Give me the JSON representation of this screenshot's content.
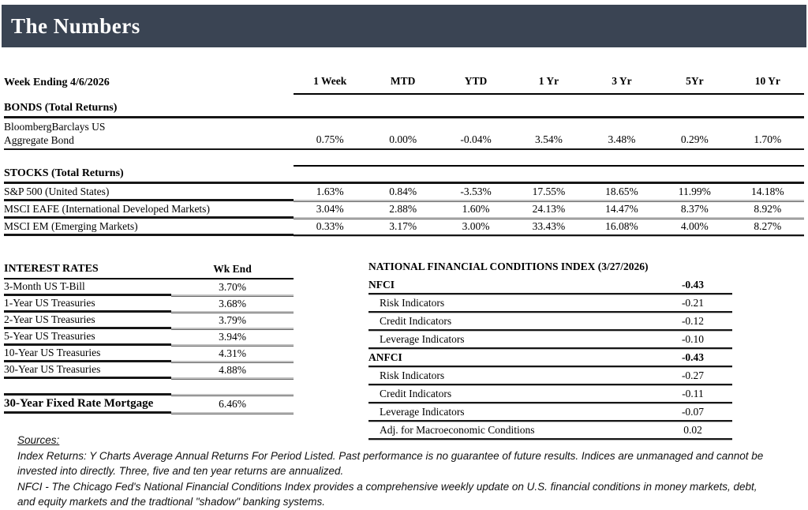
{
  "title": "The Numbers",
  "colors": {
    "header_bg": "#3a4453",
    "header_text": "#ffffff"
  },
  "returns_table": {
    "week_label": "Week Ending 4/6/2026",
    "columns": [
      "1 Week",
      "MTD",
      "YTD",
      "1 Yr",
      "3 Yr",
      "5Yr",
      "10 Yr"
    ],
    "sections": [
      {
        "heading": "BONDS (Total Returns)",
        "rows": [
          {
            "label_line1": "BloombergBarclays US",
            "label_line2": "Aggregate Bond",
            "values": [
              "0.75%",
              "0.00%",
              "-0.04%",
              "3.54%",
              "3.48%",
              "0.29%",
              "1.70%"
            ]
          }
        ]
      },
      {
        "heading": "STOCKS (Total Returns)",
        "rows": [
          {
            "label": "S&P 500 (United States)",
            "values": [
              "1.63%",
              "0.84%",
              "-3.53%",
              "17.55%",
              "18.65%",
              "11.99%",
              "14.18%"
            ]
          },
          {
            "label": "MSCI EAFE (International Developed Markets)",
            "values": [
              "3.04%",
              "2.88%",
              "1.60%",
              "24.13%",
              "14.47%",
              "8.37%",
              "8.92%"
            ]
          },
          {
            "label": "MSCI EM (Emerging Markets)",
            "values": [
              "0.33%",
              "3.17%",
              "3.00%",
              "33.43%",
              "16.08%",
              "4.00%",
              "8.27%"
            ]
          }
        ]
      }
    ]
  },
  "interest_rates": {
    "heading": "INTEREST RATES",
    "value_header": "Wk End",
    "rows": [
      {
        "label": "3-Month US T-Bill",
        "value": "3.70%"
      },
      {
        "label": "1-Year US Treasuries",
        "value": "3.68%"
      },
      {
        "label": "2-Year US Treasuries",
        "value": "3.79%"
      },
      {
        "label": "5-Year US Treasuries",
        "value": "3.94%"
      },
      {
        "label": "10-Year US Treasuries",
        "value": "4.31%"
      },
      {
        "label": "30-Year US Treasuries",
        "value": "4.88%"
      }
    ],
    "mortgage_row": {
      "label": "30-Year Fixed Rate Mortgage",
      "value": "6.46%"
    }
  },
  "nfci": {
    "heading": "NATIONAL FINANCIAL CONDITIONS INDEX (3/27/2026)",
    "rows": [
      {
        "label": "NFCI",
        "value": "-0.43"
      },
      {
        "label": "Risk Indicators",
        "value": "-0.21"
      },
      {
        "label": "Credit Indicators",
        "value": "-0.12"
      },
      {
        "label": "Leverage Indicators",
        "value": "-0.10"
      },
      {
        "label": "ANFCI",
        "value": "-0.43"
      },
      {
        "label": "Risk Indicators",
        "value": "-0.27"
      },
      {
        "label": "Credit Indicators",
        "value": "-0.11"
      },
      {
        "label": "Leverage Indicators",
        "value": "-0.07"
      },
      {
        "label": "Adj. for Macroeconomic Conditions",
        "value": "0.02"
      }
    ]
  },
  "footer": {
    "sources_label": "Sources:",
    "lines": [
      "Index Returns:  Y Charts Average Annual Returns For Period Listed.  Past performance is no guarantee of future results.  Indices are unmanaged and cannot be invested into directly.  Three, five and ten year returns are annualized.",
      "NFCI - The Chicago Fed's National Financial Conditions Index provides a comprehensive weekly update on U.S. financial conditions in money markets, debt, and equity markets and the tradtional \"shadow\" banking systems."
    ]
  }
}
